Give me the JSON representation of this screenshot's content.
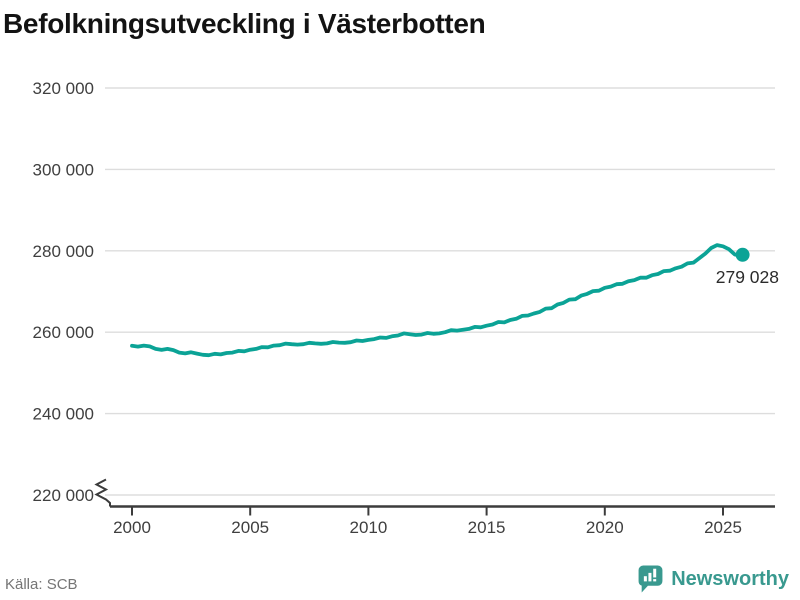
{
  "page": {
    "title": "Befolkningsutveckling i Västerbotten",
    "source": "Källa: SCB",
    "brand": "Newsworthy"
  },
  "colors": {
    "line": "#0BA396",
    "grid": "#DDDDDD",
    "axis": "#3C3C3C",
    "tick_label": "#3F3F3F",
    "end_label": "#2B2B2B",
    "title": "#131313",
    "source_text": "#757575",
    "brand": "#39998F"
  },
  "chart_data": {
    "type": "line",
    "title": "Befolkningsutveckling i Västerbotten",
    "xlabel": "",
    "ylabel": "",
    "grid": "horizontal",
    "y_axis_break": true,
    "legend": "none",
    "x_range": [
      1998.9,
      2027.2
    ],
    "y_range_shown": [
      220000,
      320000
    ],
    "x_ticks": [
      {
        "value": 2000,
        "label": "2000"
      },
      {
        "value": 2005,
        "label": "2005"
      },
      {
        "value": 2010,
        "label": "2010"
      },
      {
        "value": 2015,
        "label": "2015"
      },
      {
        "value": 2020,
        "label": "2020"
      },
      {
        "value": 2025,
        "label": "2025"
      }
    ],
    "y_ticks": [
      {
        "value": 220000,
        "label": "220 000"
      },
      {
        "value": 240000,
        "label": "240 000"
      },
      {
        "value": 260000,
        "label": "260 000"
      },
      {
        "value": 280000,
        "label": "280 000"
      },
      {
        "value": 300000,
        "label": "300 000"
      },
      {
        "value": 320000,
        "label": "320 000"
      }
    ],
    "end_label": "279 028",
    "end_value": 279028,
    "source": "Källa: SCB",
    "series": [
      {
        "color": "#0BA396",
        "points": [
          [
            2000.0,
            256650
          ],
          [
            2000.25,
            256450
          ],
          [
            2000.5,
            256700
          ],
          [
            2000.75,
            256500
          ],
          [
            2001.0,
            255900
          ],
          [
            2001.25,
            255650
          ],
          [
            2001.5,
            255900
          ],
          [
            2001.75,
            255600
          ],
          [
            2002.0,
            255000
          ],
          [
            2002.25,
            254800
          ],
          [
            2002.5,
            255050
          ],
          [
            2002.75,
            254750
          ],
          [
            2003.0,
            254450
          ],
          [
            2003.25,
            254350
          ],
          [
            2003.5,
            254700
          ],
          [
            2003.75,
            254550
          ],
          [
            2004.0,
            254900
          ],
          [
            2004.25,
            255000
          ],
          [
            2004.5,
            255400
          ],
          [
            2004.75,
            255300
          ],
          [
            2005.0,
            255700
          ],
          [
            2005.25,
            255900
          ],
          [
            2005.5,
            256350
          ],
          [
            2005.75,
            256300
          ],
          [
            2006.0,
            256700
          ],
          [
            2006.25,
            256800
          ],
          [
            2006.5,
            257200
          ],
          [
            2006.75,
            257050
          ],
          [
            2007.0,
            256950
          ],
          [
            2007.25,
            257050
          ],
          [
            2007.5,
            257400
          ],
          [
            2007.75,
            257250
          ],
          [
            2008.0,
            257150
          ],
          [
            2008.25,
            257250
          ],
          [
            2008.5,
            257600
          ],
          [
            2008.75,
            257450
          ],
          [
            2009.0,
            257400
          ],
          [
            2009.25,
            257550
          ],
          [
            2009.5,
            257950
          ],
          [
            2009.75,
            257850
          ],
          [
            2010.0,
            258100
          ],
          [
            2010.25,
            258300
          ],
          [
            2010.5,
            258700
          ],
          [
            2010.75,
            258600
          ],
          [
            2011.0,
            259000
          ],
          [
            2011.25,
            259200
          ],
          [
            2011.5,
            259700
          ],
          [
            2011.75,
            259500
          ],
          [
            2012.0,
            259300
          ],
          [
            2012.25,
            259400
          ],
          [
            2012.5,
            259800
          ],
          [
            2012.75,
            259600
          ],
          [
            2013.0,
            259700
          ],
          [
            2013.25,
            260000
          ],
          [
            2013.5,
            260500
          ],
          [
            2013.75,
            260400
          ],
          [
            2014.0,
            260600
          ],
          [
            2014.25,
            260800
          ],
          [
            2014.5,
            261300
          ],
          [
            2014.75,
            261200
          ],
          [
            2015.0,
            261600
          ],
          [
            2015.25,
            261900
          ],
          [
            2015.5,
            262500
          ],
          [
            2015.75,
            262400
          ],
          [
            2016.0,
            263000
          ],
          [
            2016.25,
            263300
          ],
          [
            2016.5,
            264000
          ],
          [
            2016.75,
            264100
          ],
          [
            2017.0,
            264600
          ],
          [
            2017.25,
            265000
          ],
          [
            2017.5,
            265800
          ],
          [
            2017.75,
            265900
          ],
          [
            2018.0,
            266800
          ],
          [
            2018.25,
            267200
          ],
          [
            2018.5,
            268000
          ],
          [
            2018.75,
            268100
          ],
          [
            2019.0,
            269000
          ],
          [
            2019.25,
            269400
          ],
          [
            2019.5,
            270100
          ],
          [
            2019.75,
            270200
          ],
          [
            2020.0,
            270900
          ],
          [
            2020.25,
            271200
          ],
          [
            2020.5,
            271800
          ],
          [
            2020.75,
            271900
          ],
          [
            2021.0,
            272500
          ],
          [
            2021.25,
            272800
          ],
          [
            2021.5,
            273400
          ],
          [
            2021.75,
            273400
          ],
          [
            2022.0,
            274000
          ],
          [
            2022.25,
            274300
          ],
          [
            2022.5,
            275000
          ],
          [
            2022.75,
            275100
          ],
          [
            2023.0,
            275700
          ],
          [
            2023.25,
            276100
          ],
          [
            2023.5,
            276900
          ],
          [
            2023.75,
            277100
          ],
          [
            2024.0,
            278200
          ],
          [
            2024.25,
            279300
          ],
          [
            2024.5,
            280700
          ],
          [
            2024.75,
            281400
          ],
          [
            2025.0,
            281100
          ],
          [
            2025.25,
            280400
          ],
          [
            2025.5,
            279100
          ],
          [
            2025.75,
            278800
          ],
          [
            2025.83,
            279028
          ]
        ]
      }
    ]
  }
}
